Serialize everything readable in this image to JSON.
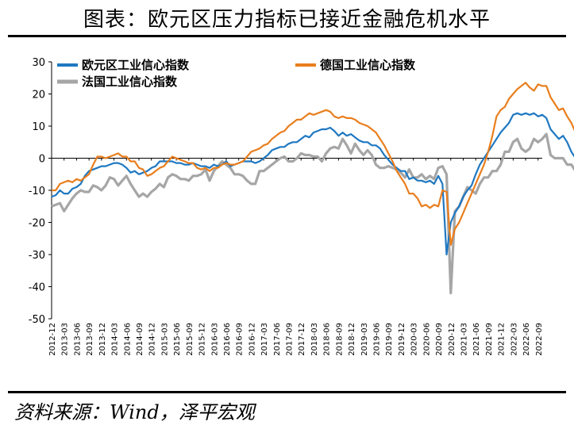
{
  "title": "图表：欧元区压力指标已接近金融危机水平",
  "source": "资料来源：Wind，泽平宏观",
  "chart_data": {
    "type": "line",
    "ylim": [
      -50,
      30
    ],
    "yticks": [
      30,
      20,
      10,
      0,
      -10,
      -20,
      -30,
      -40,
      -50
    ],
    "xlabels": [
      "2012-12",
      "2013-03",
      "2013-06",
      "2013-09",
      "2013-12",
      "2014-03",
      "2014-06",
      "2014-09",
      "2014-12",
      "2015-03",
      "2015-06",
      "2015-09",
      "2015-12",
      "2016-03",
      "2016-06",
      "2016-09",
      "2016-12",
      "2017-03",
      "2017-06",
      "2017-09",
      "2017-12",
      "2018-03",
      "2018-06",
      "2018-09",
      "2018-12",
      "2019-03",
      "2019-06",
      "2019-09",
      "2019-12",
      "2020-03",
      "2020-06",
      "2020-09",
      "2020-12",
      "2021-03",
      "2021-06",
      "2021-09",
      "2021-12",
      "2022-03",
      "2022-06",
      "2022-09"
    ],
    "grid": false,
    "legend": "top-left and top-right",
    "series": [
      {
        "name": "欧元区工业信心指数",
        "color": "#1f78c1",
        "values": [
          -12,
          -11.5,
          -10,
          -11,
          -11,
          -9.5,
          -9,
          -8,
          -5.5,
          -4,
          -3.5,
          -3,
          -2.5,
          -2.5,
          -2,
          -1.5,
          -1.5,
          -2,
          -3,
          -4.5,
          -4,
          -5,
          -4.5,
          -4,
          -3,
          -2.5,
          -1,
          -1,
          -1,
          -1,
          -1.5,
          -1.5,
          -2,
          -2,
          -1.5,
          -2,
          -2.5,
          -2.5,
          -3,
          -2,
          -2.5,
          -2,
          -1,
          -2.5,
          -2,
          -1.5,
          -1,
          -1,
          -1,
          -1.5,
          -1,
          0,
          1,
          2.5,
          3,
          3.5,
          3.5,
          4.5,
          5,
          5,
          6,
          7,
          6.5,
          8,
          8.5,
          9,
          9,
          9.5,
          8.5,
          7,
          8,
          7,
          7.5,
          6.5,
          5.5,
          5,
          5,
          4,
          4,
          3,
          1,
          -0.5,
          -2,
          -3,
          -4,
          -4,
          -6.5,
          -6,
          -7,
          -7,
          -7.5,
          -7,
          -8,
          -5.5,
          -8,
          -30,
          -20,
          -17,
          -15,
          -12,
          -10,
          -8.5,
          -5,
          -2,
          0,
          2,
          4,
          6,
          8,
          9.5,
          11,
          13.5,
          14,
          13.5,
          14,
          13.5,
          14,
          13,
          13.5,
          12.5,
          9,
          7.5,
          6,
          7,
          5,
          2,
          0,
          -1,
          -1.5
        ]
      },
      {
        "name": "德国工业信心指数",
        "color": "#e97e1d",
        "values": [
          -10,
          -10,
          -8,
          -7.5,
          -7,
          -7.5,
          -6.5,
          -7,
          -6,
          -5,
          -2,
          0.5,
          0.5,
          0,
          0.5,
          1,
          1.5,
          0.5,
          0.5,
          -1,
          -1,
          -3,
          -3.5,
          -5.5,
          -5,
          -4,
          -3,
          -2.5,
          -1,
          0.5,
          0,
          -0.5,
          -1,
          -1.5,
          -1.5,
          -3,
          -3.5,
          -3,
          -4,
          -3,
          -3,
          -2,
          -1.5,
          -2,
          -2,
          -1.5,
          -1,
          0.5,
          2,
          2.5,
          3,
          4,
          4.5,
          6,
          7,
          8,
          8.5,
          10,
          11,
          12,
          12,
          13,
          14,
          13.5,
          14,
          14.5,
          15,
          14.5,
          13,
          12.5,
          13,
          12.5,
          12.5,
          12,
          11,
          10.5,
          10,
          9,
          8,
          6,
          4,
          1.5,
          -1,
          -4,
          -6,
          -8,
          -11,
          -11,
          -12.5,
          -15,
          -14.5,
          -15.5,
          -14.5,
          -15,
          -10,
          -10.5,
          -27,
          -22,
          -20,
          -17,
          -14,
          -11,
          -8,
          -5,
          -2,
          2,
          7,
          13,
          15,
          16,
          18.5,
          20,
          21.5,
          22.5,
          23.5,
          22,
          21,
          23,
          22.5,
          22.5,
          19,
          17,
          15,
          15.5,
          13,
          11,
          8,
          4.5,
          3,
          3
        ]
      },
      {
        "name": "法国工业信心指数",
        "color": "#a6a6a6",
        "values": [
          -15,
          -14.5,
          -14,
          -16.5,
          -14.5,
          -12.5,
          -11,
          -10,
          -10.5,
          -10.5,
          -8.5,
          -9,
          -10,
          -8.5,
          -6,
          -6.5,
          -8.5,
          -7,
          -5.5,
          -8,
          -10,
          -12,
          -11,
          -12,
          -10.5,
          -9.5,
          -8,
          -9,
          -6,
          -5,
          -5.5,
          -6.5,
          -6.5,
          -7,
          -5.5,
          -5.5,
          -5,
          -3.5,
          -7,
          -4,
          -2.5,
          -1,
          -2,
          -3,
          -5,
          -5,
          -5.5,
          -7,
          -8,
          -8,
          -4,
          -4,
          -3,
          -2,
          -1,
          0,
          0.5,
          -1,
          -1,
          0,
          1.5,
          1,
          1,
          0.5,
          0.5,
          -1,
          1.5,
          3,
          3.5,
          3,
          6,
          4,
          1.5,
          4.5,
          2.5,
          1,
          2.5,
          1,
          -2,
          -3,
          -3,
          -2.5,
          -3,
          -3.5,
          -4.5,
          -6,
          -3.5,
          -6,
          -6,
          -5,
          -6.5,
          -5.5,
          -6.5,
          -3,
          -2.5,
          -5,
          -42,
          -16.5,
          -15,
          -12,
          -9,
          -10,
          -11,
          -8,
          -6,
          -6,
          -4,
          -4,
          -2,
          2,
          2,
          5,
          6,
          3,
          2,
          3,
          6,
          5,
          6,
          7.5,
          1,
          0,
          0,
          0,
          -2,
          -2,
          -4,
          -6,
          -6.5,
          -6.5
        ]
      }
    ]
  }
}
